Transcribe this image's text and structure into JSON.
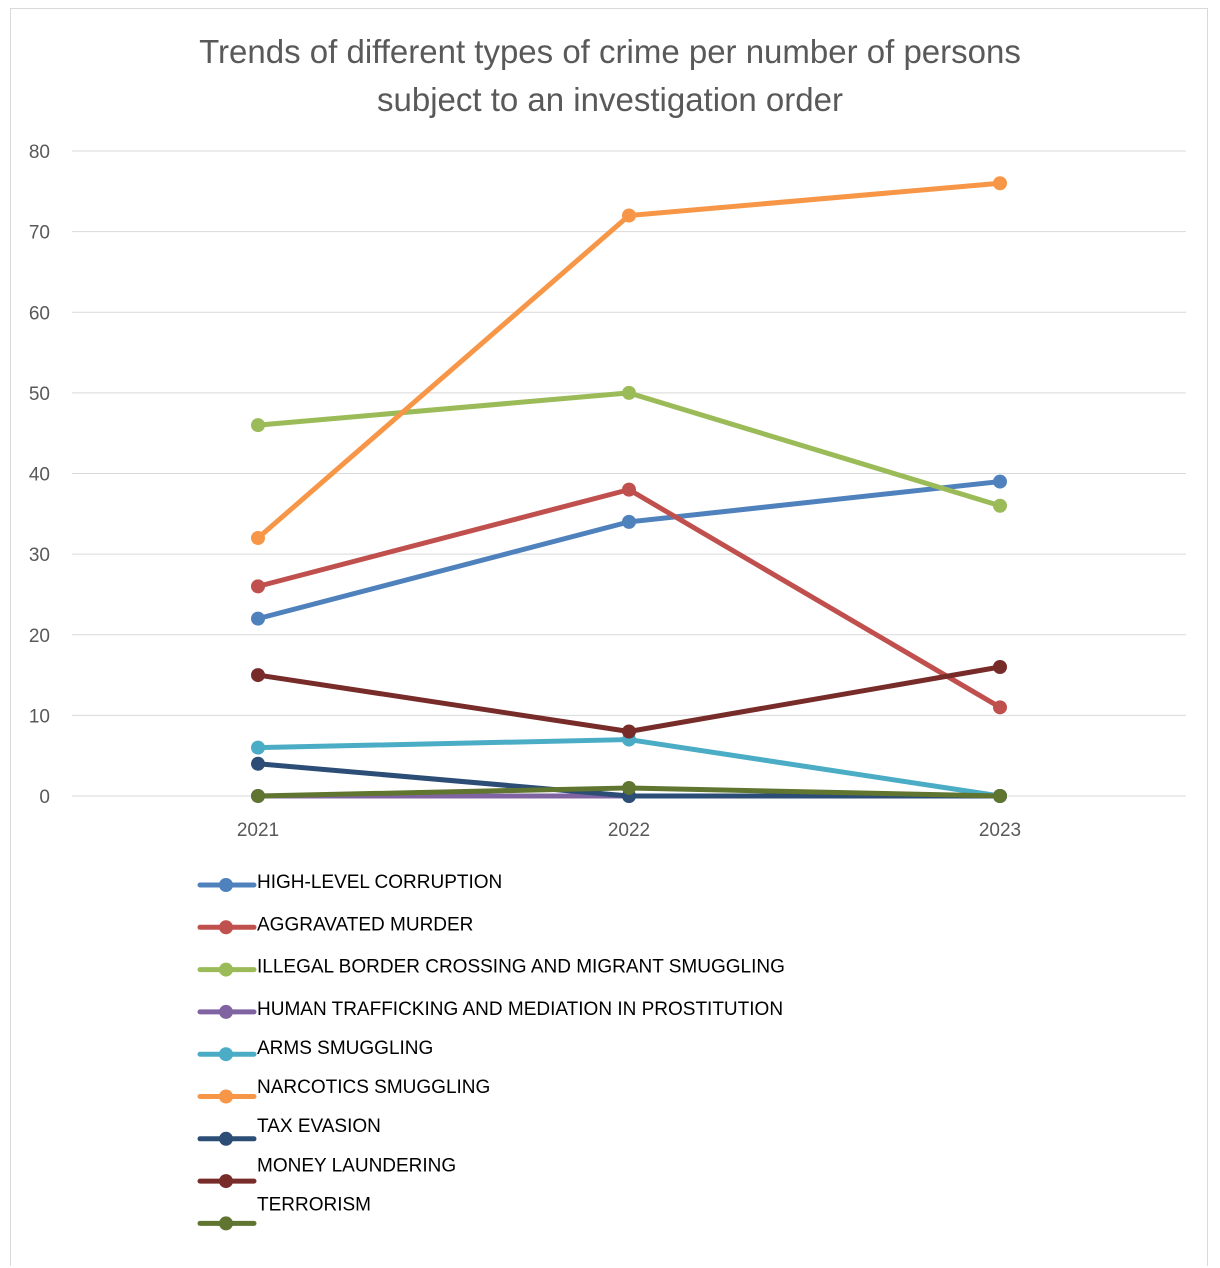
{
  "chart_data": {
    "type": "line",
    "title": "Trends of different types of crime per number of persons subject to an investigation order",
    "title_lines": [
      "Trends of different types of crime per number of persons",
      "subject to an investigation order"
    ],
    "categories": [
      "2021",
      "2022",
      "2023"
    ],
    "ylim": [
      0,
      80
    ],
    "yticks": [
      0,
      10,
      20,
      30,
      40,
      50,
      60,
      70,
      80
    ],
    "grid": true,
    "legend_position": "bottom",
    "series": [
      {
        "name": "HIGH-LEVEL CORRUPTION",
        "color": "#4f81bd",
        "values": [
          22,
          34,
          39
        ]
      },
      {
        "name": "AGGRAVATED MURDER",
        "color": "#c0504d",
        "values": [
          26,
          38,
          11
        ]
      },
      {
        "name": "ILLEGAL BORDER CROSSING AND MIGRANT SMUGGLING",
        "color": "#9bbb59",
        "values": [
          46,
          50,
          36
        ]
      },
      {
        "name": "HUMAN TRAFFICKING AND MEDIATION IN PROSTITUTION",
        "color": "#8064a2",
        "values": [
          0,
          0,
          0
        ]
      },
      {
        "name": "ARMS SMUGGLING",
        "color": "#4bacc6",
        "values": [
          6,
          7,
          0
        ]
      },
      {
        "name": "NARCOTICS SMUGGLING",
        "color": "#f79646",
        "values": [
          32,
          72,
          76
        ]
      },
      {
        "name": "TAX EVASION",
        "color": "#2c4d75",
        "values": [
          4,
          0,
          0
        ]
      },
      {
        "name": "MONEY LAUNDERING",
        "color": "#772c2a",
        "values": [
          15,
          8,
          16
        ]
      },
      {
        "name": "TERRORISM",
        "color": "#5f7530",
        "values": [
          0,
          1,
          0
        ]
      }
    ]
  }
}
